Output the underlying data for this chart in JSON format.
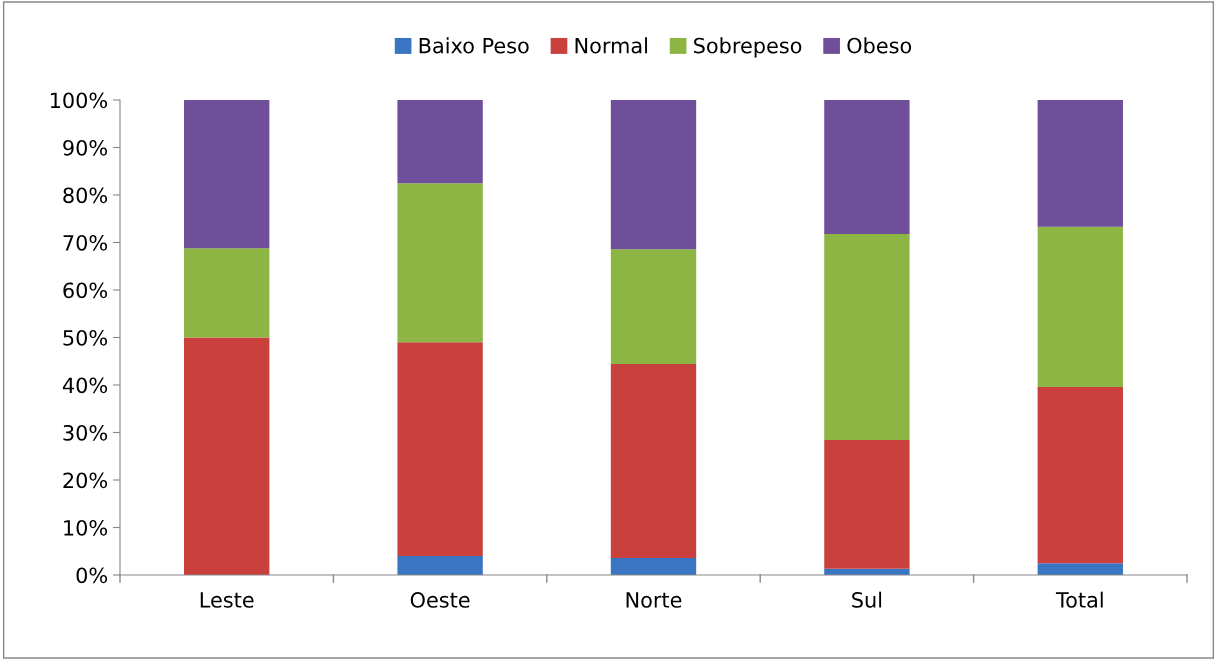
{
  "chart_data": {
    "type": "bar",
    "stacked": true,
    "categories": [
      "Leste",
      "Oeste",
      "Norte",
      "Sul",
      "Total"
    ],
    "series": [
      {
        "name": "Baixo Peso",
        "color": "#3a75c4",
        "values": [
          0,
          4,
          3.6,
          1.3,
          2.5
        ]
      },
      {
        "name": "Normal",
        "color": "#c9403c",
        "values": [
          50,
          45,
          40.8,
          27.1,
          37.1
        ]
      },
      {
        "name": "Sobrepeso",
        "color": "#8db543",
        "values": [
          18.8,
          33.5,
          24.2,
          43.4,
          33.7
        ]
      },
      {
        "name": "Obeso",
        "color": "#6f4f99",
        "values": [
          31.2,
          17.5,
          31.4,
          28.2,
          26.7
        ]
      }
    ],
    "ylim": [
      0,
      100
    ],
    "yticks": [
      {
        "value": 0,
        "label": "0%"
      },
      {
        "value": 10,
        "label": "10%"
      },
      {
        "value": 20,
        "label": "20%"
      },
      {
        "value": 30,
        "label": "30%"
      },
      {
        "value": 40,
        "label": "40%"
      },
      {
        "value": 50,
        "label": "50%"
      },
      {
        "value": 60,
        "label": "60%"
      },
      {
        "value": 70,
        "label": "70%"
      },
      {
        "value": 80,
        "label": "80%"
      },
      {
        "value": 90,
        "label": "90%"
      },
      {
        "value": 100,
        "label": "100%"
      }
    ],
    "grid": false,
    "legend": "top"
  }
}
